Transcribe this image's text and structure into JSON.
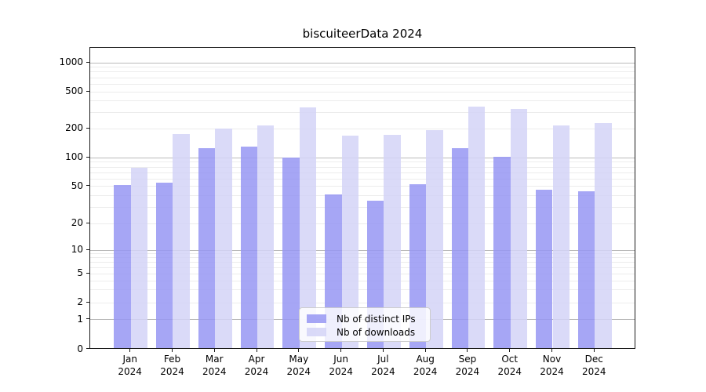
{
  "title": "biscuiteerData 2024",
  "chart_data": {
    "type": "bar",
    "categories": [
      "Jan",
      "Feb",
      "Mar",
      "Apr",
      "May",
      "Jun",
      "Jul",
      "Aug",
      "Sep",
      "Oct",
      "Nov",
      "Dec"
    ],
    "year_label": "2024",
    "series": [
      {
        "name": "Nb of distinct IPs",
        "color": "rgba(150,150,243,0.85)",
        "values": [
          50,
          53,
          123,
          128,
          97,
          40,
          34,
          51,
          122,
          100,
          45,
          43
        ]
      },
      {
        "name": "Nb of downloads",
        "color": "rgba(211,211,247,0.85)",
        "values": [
          77,
          172,
          194,
          211,
          330,
          164,
          169,
          188,
          335,
          320,
          210,
          223
        ]
      }
    ],
    "yticks": [
      0,
      1,
      2,
      5,
      10,
      20,
      50,
      100,
      200,
      500,
      1000
    ],
    "scale": "symlog",
    "xlabel": "",
    "ylabel": "",
    "grid": true,
    "legend_position": "lower center",
    "axis_color": "#1a1a1a",
    "major_grid_color": "#b9b9b9",
    "minor_grid_color": "#ececec"
  }
}
